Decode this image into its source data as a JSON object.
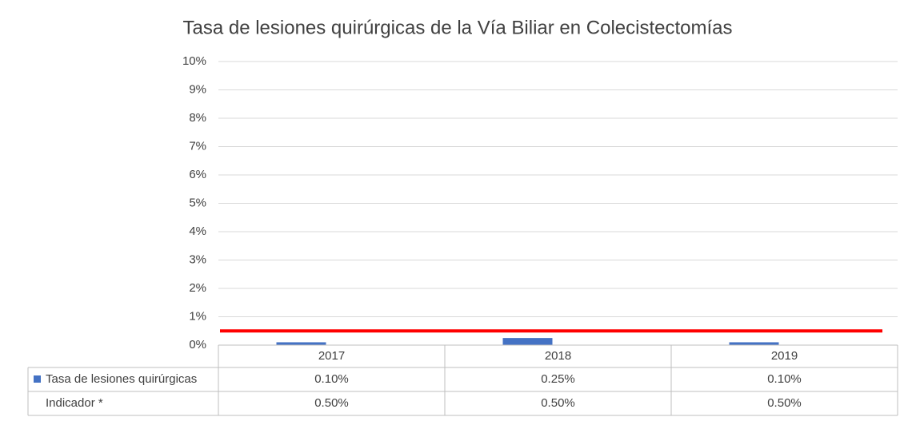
{
  "chart_data": {
    "type": "bar",
    "title": "Tasa de lesiones quirúrgicas de la Vía Biliar en Colecistectomías",
    "categories": [
      "2017",
      "2018",
      "2019"
    ],
    "series": [
      {
        "name": "Tasa de lesiones quirúrgicas",
        "type": "bar",
        "color": "#4472c4",
        "values": [
          0.1,
          0.25,
          0.1
        ],
        "value_labels": [
          "0.10%",
          "0.25%",
          "0.10%"
        ]
      },
      {
        "name": "Indicador *",
        "type": "line",
        "color": "#ff0000",
        "values": [
          0.5,
          0.5,
          0.5
        ],
        "value_labels": [
          "0.50%",
          "0.50%",
          "0.50%"
        ]
      }
    ],
    "ylim": [
      0,
      10
    ],
    "yticks": [
      {
        "value": 0,
        "label": "0%"
      },
      {
        "value": 1,
        "label": "1%"
      },
      {
        "value": 2,
        "label": "2%"
      },
      {
        "value": 3,
        "label": "3%"
      },
      {
        "value": 4,
        "label": "4%"
      },
      {
        "value": 5,
        "label": "5%"
      },
      {
        "value": 6,
        "label": "6%"
      },
      {
        "value": 7,
        "label": "7%"
      },
      {
        "value": 8,
        "label": "8%"
      },
      {
        "value": 9,
        "label": "9%"
      },
      {
        "value": 10,
        "label": "10%"
      }
    ],
    "grid": true
  }
}
